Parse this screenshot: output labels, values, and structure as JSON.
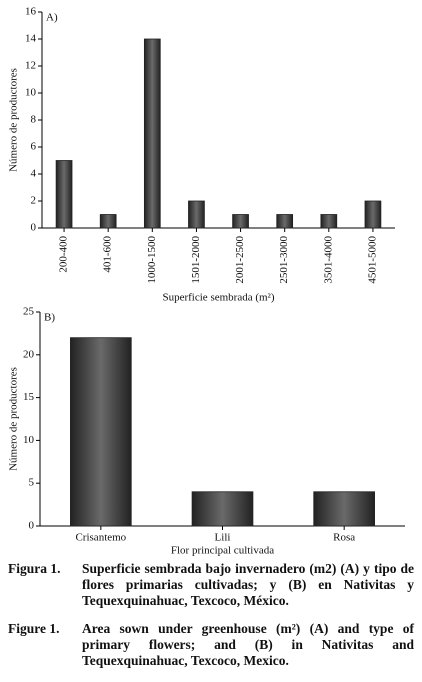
{
  "chart_data": [
    {
      "type": "bar",
      "panel": "A)",
      "y_label": "Número de productores",
      "x_label": "Superficie sembrada (m²)",
      "categories": [
        "200-400",
        "401-600",
        "1000-1500",
        "1501-2000",
        "2001-2500",
        "2501-3000",
        "3501-4000",
        "4501-5000"
      ],
      "values": [
        5,
        1,
        14,
        2,
        1,
        1,
        1,
        2
      ],
      "color": "#464646",
      "ylim": [
        0,
        16
      ],
      "yticks": [
        0,
        2,
        4,
        6,
        8,
        10,
        12,
        14,
        16
      ]
    },
    {
      "type": "bar",
      "panel": "B)",
      "y_label": "Número de productores",
      "x_label": "Flor principal cultivada",
      "categories": [
        "Crisantemo",
        "Lili",
        "Rosa"
      ],
      "values": [
        22,
        4,
        4
      ],
      "color": "#464646",
      "ylim": [
        0,
        25
      ],
      "yticks": [
        0,
        5,
        10,
        15,
        20,
        25
      ]
    }
  ],
  "captions": [
    {
      "label": "Figura 1.",
      "text": "Superficie sembrada bajo invernadero (m2) (A) y tipo de flores primarias cultivadas; y (B) en Nativitas y Tequexquinahuac, Texcoco, México."
    },
    {
      "label": "Figure 1.",
      "text": "Area sown under greenhouse (m²) (A) and type of primary flowers; and (B) in Nativitas and Tequexquinahuac, Texcoco, Mexico."
    }
  ]
}
